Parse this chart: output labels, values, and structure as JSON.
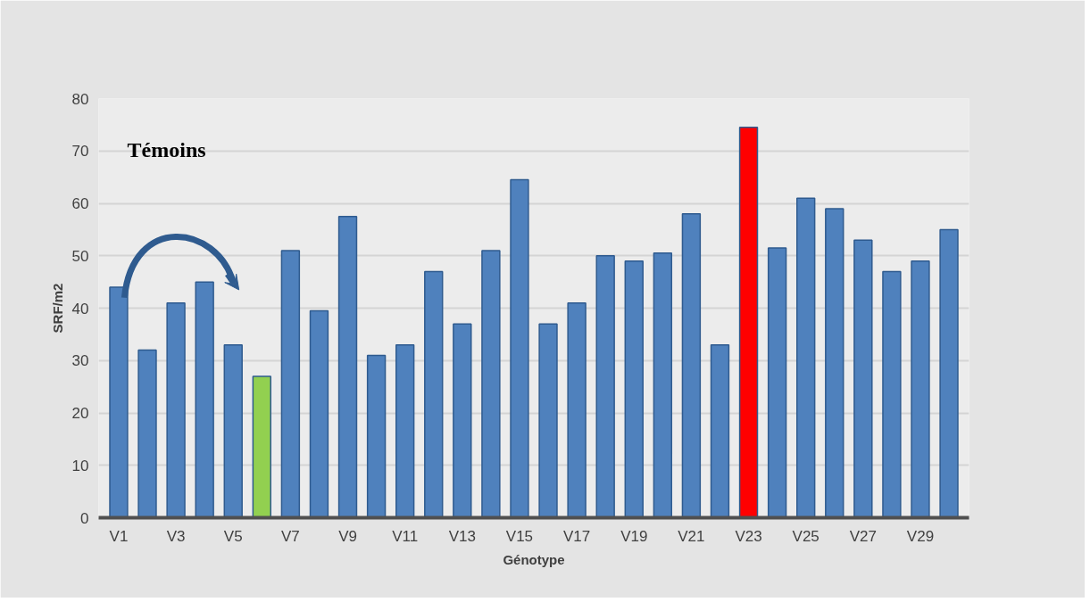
{
  "chart_data": {
    "type": "bar",
    "xlabel": "Génotype",
    "ylabel": "SRF/m2",
    "categories": [
      "V1",
      null,
      "V3",
      null,
      "V5",
      null,
      "V7",
      null,
      "V9",
      null,
      "V11",
      null,
      "V13",
      null,
      "V15",
      null,
      "V17",
      null,
      "V19",
      null,
      "V21",
      null,
      "V23",
      null,
      "V25",
      null,
      "V27",
      null,
      "V29",
      null
    ],
    "values": [
      44,
      32,
      41,
      45,
      33,
      27,
      51,
      39.5,
      57.5,
      31,
      33,
      47,
      37,
      51,
      64.5,
      37,
      41,
      50,
      49,
      50.5,
      58,
      33,
      74.5,
      51.5,
      61,
      59,
      53,
      47,
      49,
      55
    ],
    "colors": [
      "#4f81bd",
      "#4f81bd",
      "#4f81bd",
      "#4f81bd",
      "#4f81bd",
      "#92d050",
      "#4f81bd",
      "#4f81bd",
      "#4f81bd",
      "#4f81bd",
      "#4f81bd",
      "#4f81bd",
      "#4f81bd",
      "#4f81bd",
      "#4f81bd",
      "#4f81bd",
      "#4f81bd",
      "#4f81bd",
      "#4f81bd",
      "#4f81bd",
      "#4f81bd",
      "#4f81bd",
      "#ff0000",
      "#4f81bd",
      "#4f81bd",
      "#4f81bd",
      "#4f81bd",
      "#4f81bd",
      "#4f81bd",
      "#4f81bd"
    ],
    "ylim": [
      0,
      80
    ],
    "yticks": [
      0,
      10,
      20,
      30,
      40,
      50,
      60,
      70,
      80
    ],
    "grid": "y",
    "annotations": [
      "Témoins"
    ]
  }
}
